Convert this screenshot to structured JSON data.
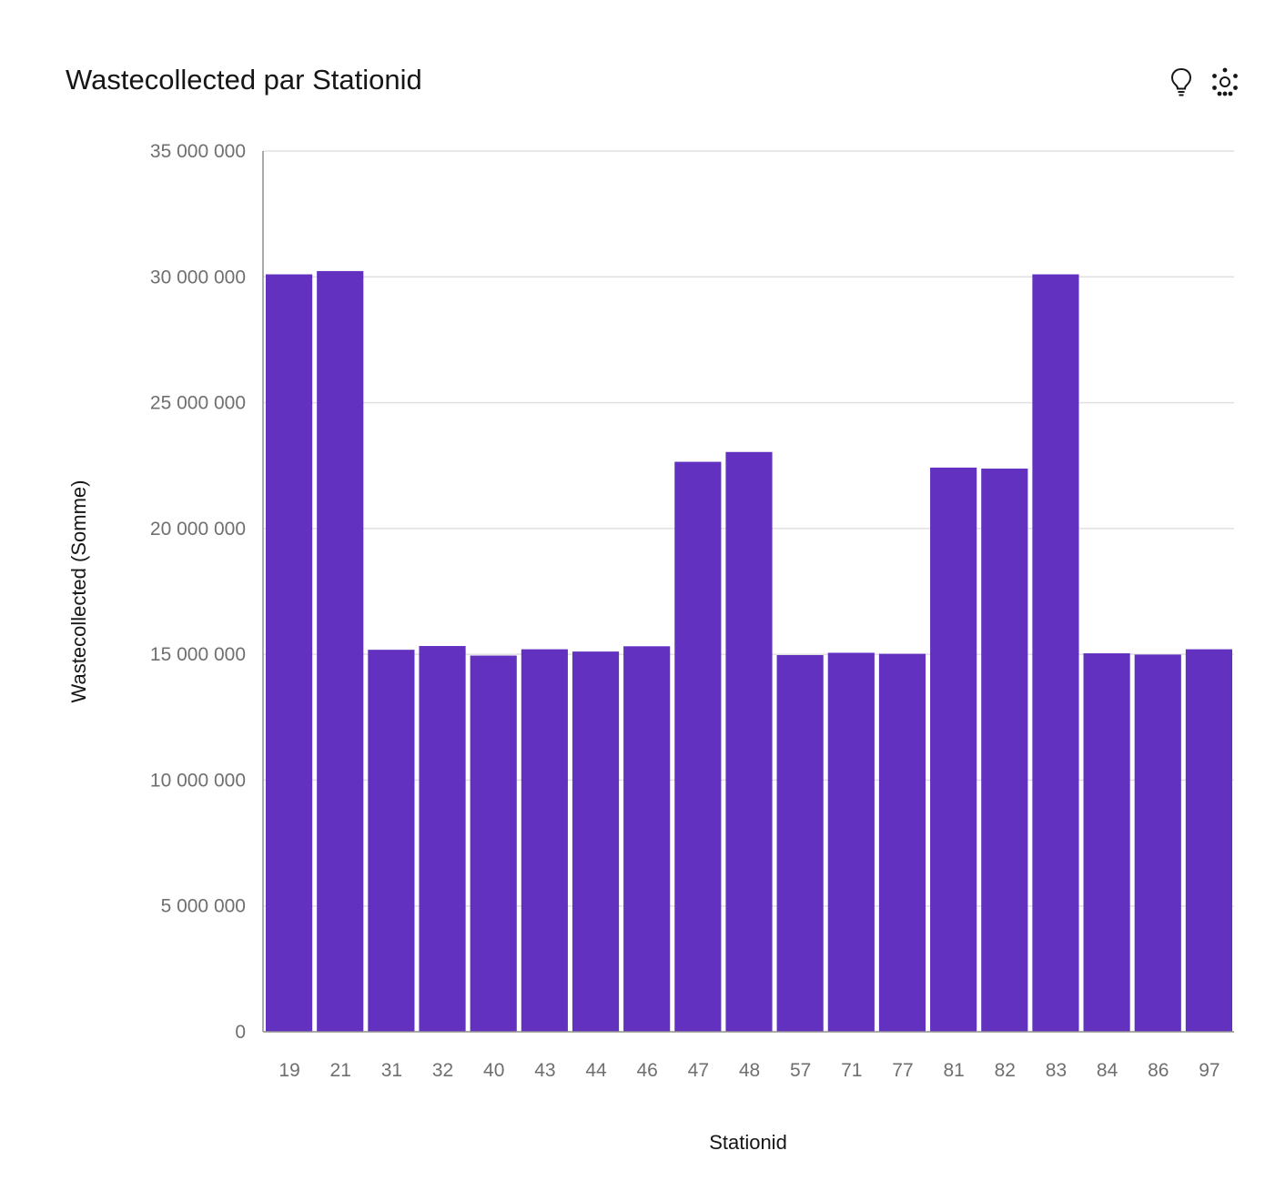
{
  "header": {
    "title": "Wastecollected par Stationid"
  },
  "toolbar": {
    "icons": [
      "lightbulb-icon",
      "explore-dots-icon"
    ]
  },
  "colors": {
    "bar": "#6231bf",
    "grid": "#e0e0e0",
    "axis": "#8d8d8d",
    "tick_text": "#6f6f6f"
  },
  "chart_data": {
    "type": "bar",
    "title": "Wastecollected par Stationid",
    "xlabel": "Stationid",
    "ylabel": "Wastecollected (Somme)",
    "categories": [
      "19",
      "21",
      "31",
      "32",
      "40",
      "43",
      "44",
      "46",
      "47",
      "48",
      "57",
      "71",
      "77",
      "81",
      "82",
      "83",
      "84",
      "86",
      "97"
    ],
    "values": [
      30100000,
      30230000,
      15180000,
      15330000,
      14950000,
      15200000,
      15110000,
      15320000,
      22650000,
      23040000,
      14970000,
      15060000,
      15020000,
      22420000,
      22380000,
      30100000,
      15040000,
      14990000,
      15200000
    ],
    "ylim": [
      0,
      35000000
    ],
    "yticks": [
      0,
      5000000,
      10000000,
      15000000,
      20000000,
      25000000,
      30000000,
      35000000
    ],
    "ytick_labels": [
      "0",
      "5 000 000",
      "10 000 000",
      "15 000 000",
      "20 000 000",
      "25 000 000",
      "30 000 000",
      "35 000 000"
    ],
    "grid": true,
    "legend": "none"
  }
}
